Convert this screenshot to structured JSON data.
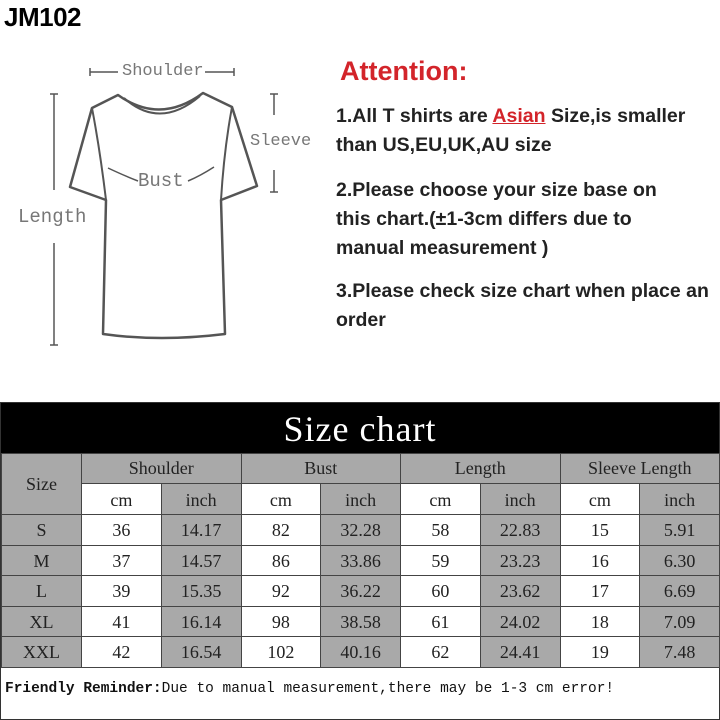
{
  "model_code": "JM102",
  "diagram": {
    "labels": {
      "shoulder": "Shoulder",
      "sleeve": "Sleeve",
      "bust": "Bust",
      "length": "Length"
    }
  },
  "attention": {
    "title": "Attention:",
    "item1_prefix": "1.All T shirts are ",
    "item1_highlight": "Asian",
    "item1_suffix": " Size,is  smaller than US,EU,UK,AU size",
    "item2": "2.Please choose your size base on this chart.(±1-3cm differs due to manual measurement )",
    "item3": "3.Please check size chart when place an order",
    "colors": {
      "accent": "#d3242a"
    }
  },
  "size_chart": {
    "title": "Size chart",
    "size_header": "Size",
    "groups": [
      "Shoulder",
      "Bust",
      "Length",
      "Sleeve Length"
    ],
    "units": [
      "cm",
      "inch"
    ],
    "rows": [
      {
        "size": "S",
        "values": [
          "36",
          "14.17",
          "82",
          "32.28",
          "58",
          "22.83",
          "15",
          "5.91"
        ]
      },
      {
        "size": "M",
        "values": [
          "37",
          "14.57",
          "86",
          "33.86",
          "59",
          "23.23",
          "16",
          "6.30"
        ]
      },
      {
        "size": "L",
        "values": [
          "39",
          "15.35",
          "92",
          "36.22",
          "60",
          "23.62",
          "17",
          "6.69"
        ]
      },
      {
        "size": "XL",
        "values": [
          "41",
          "16.14",
          "98",
          "38.58",
          "61",
          "24.02",
          "18",
          "7.09"
        ]
      },
      {
        "size": "XXL",
        "values": [
          "42",
          "16.54",
          "102",
          "40.16",
          "62",
          "24.41",
          "19",
          "7.48"
        ]
      }
    ],
    "colors": {
      "header_bg": "#000000",
      "shaded": "#a9a9a9"
    }
  },
  "reminder": {
    "label": "Friendly Reminder:",
    "text": "Due to manual measurement,there may be 1-3 cm error!"
  }
}
